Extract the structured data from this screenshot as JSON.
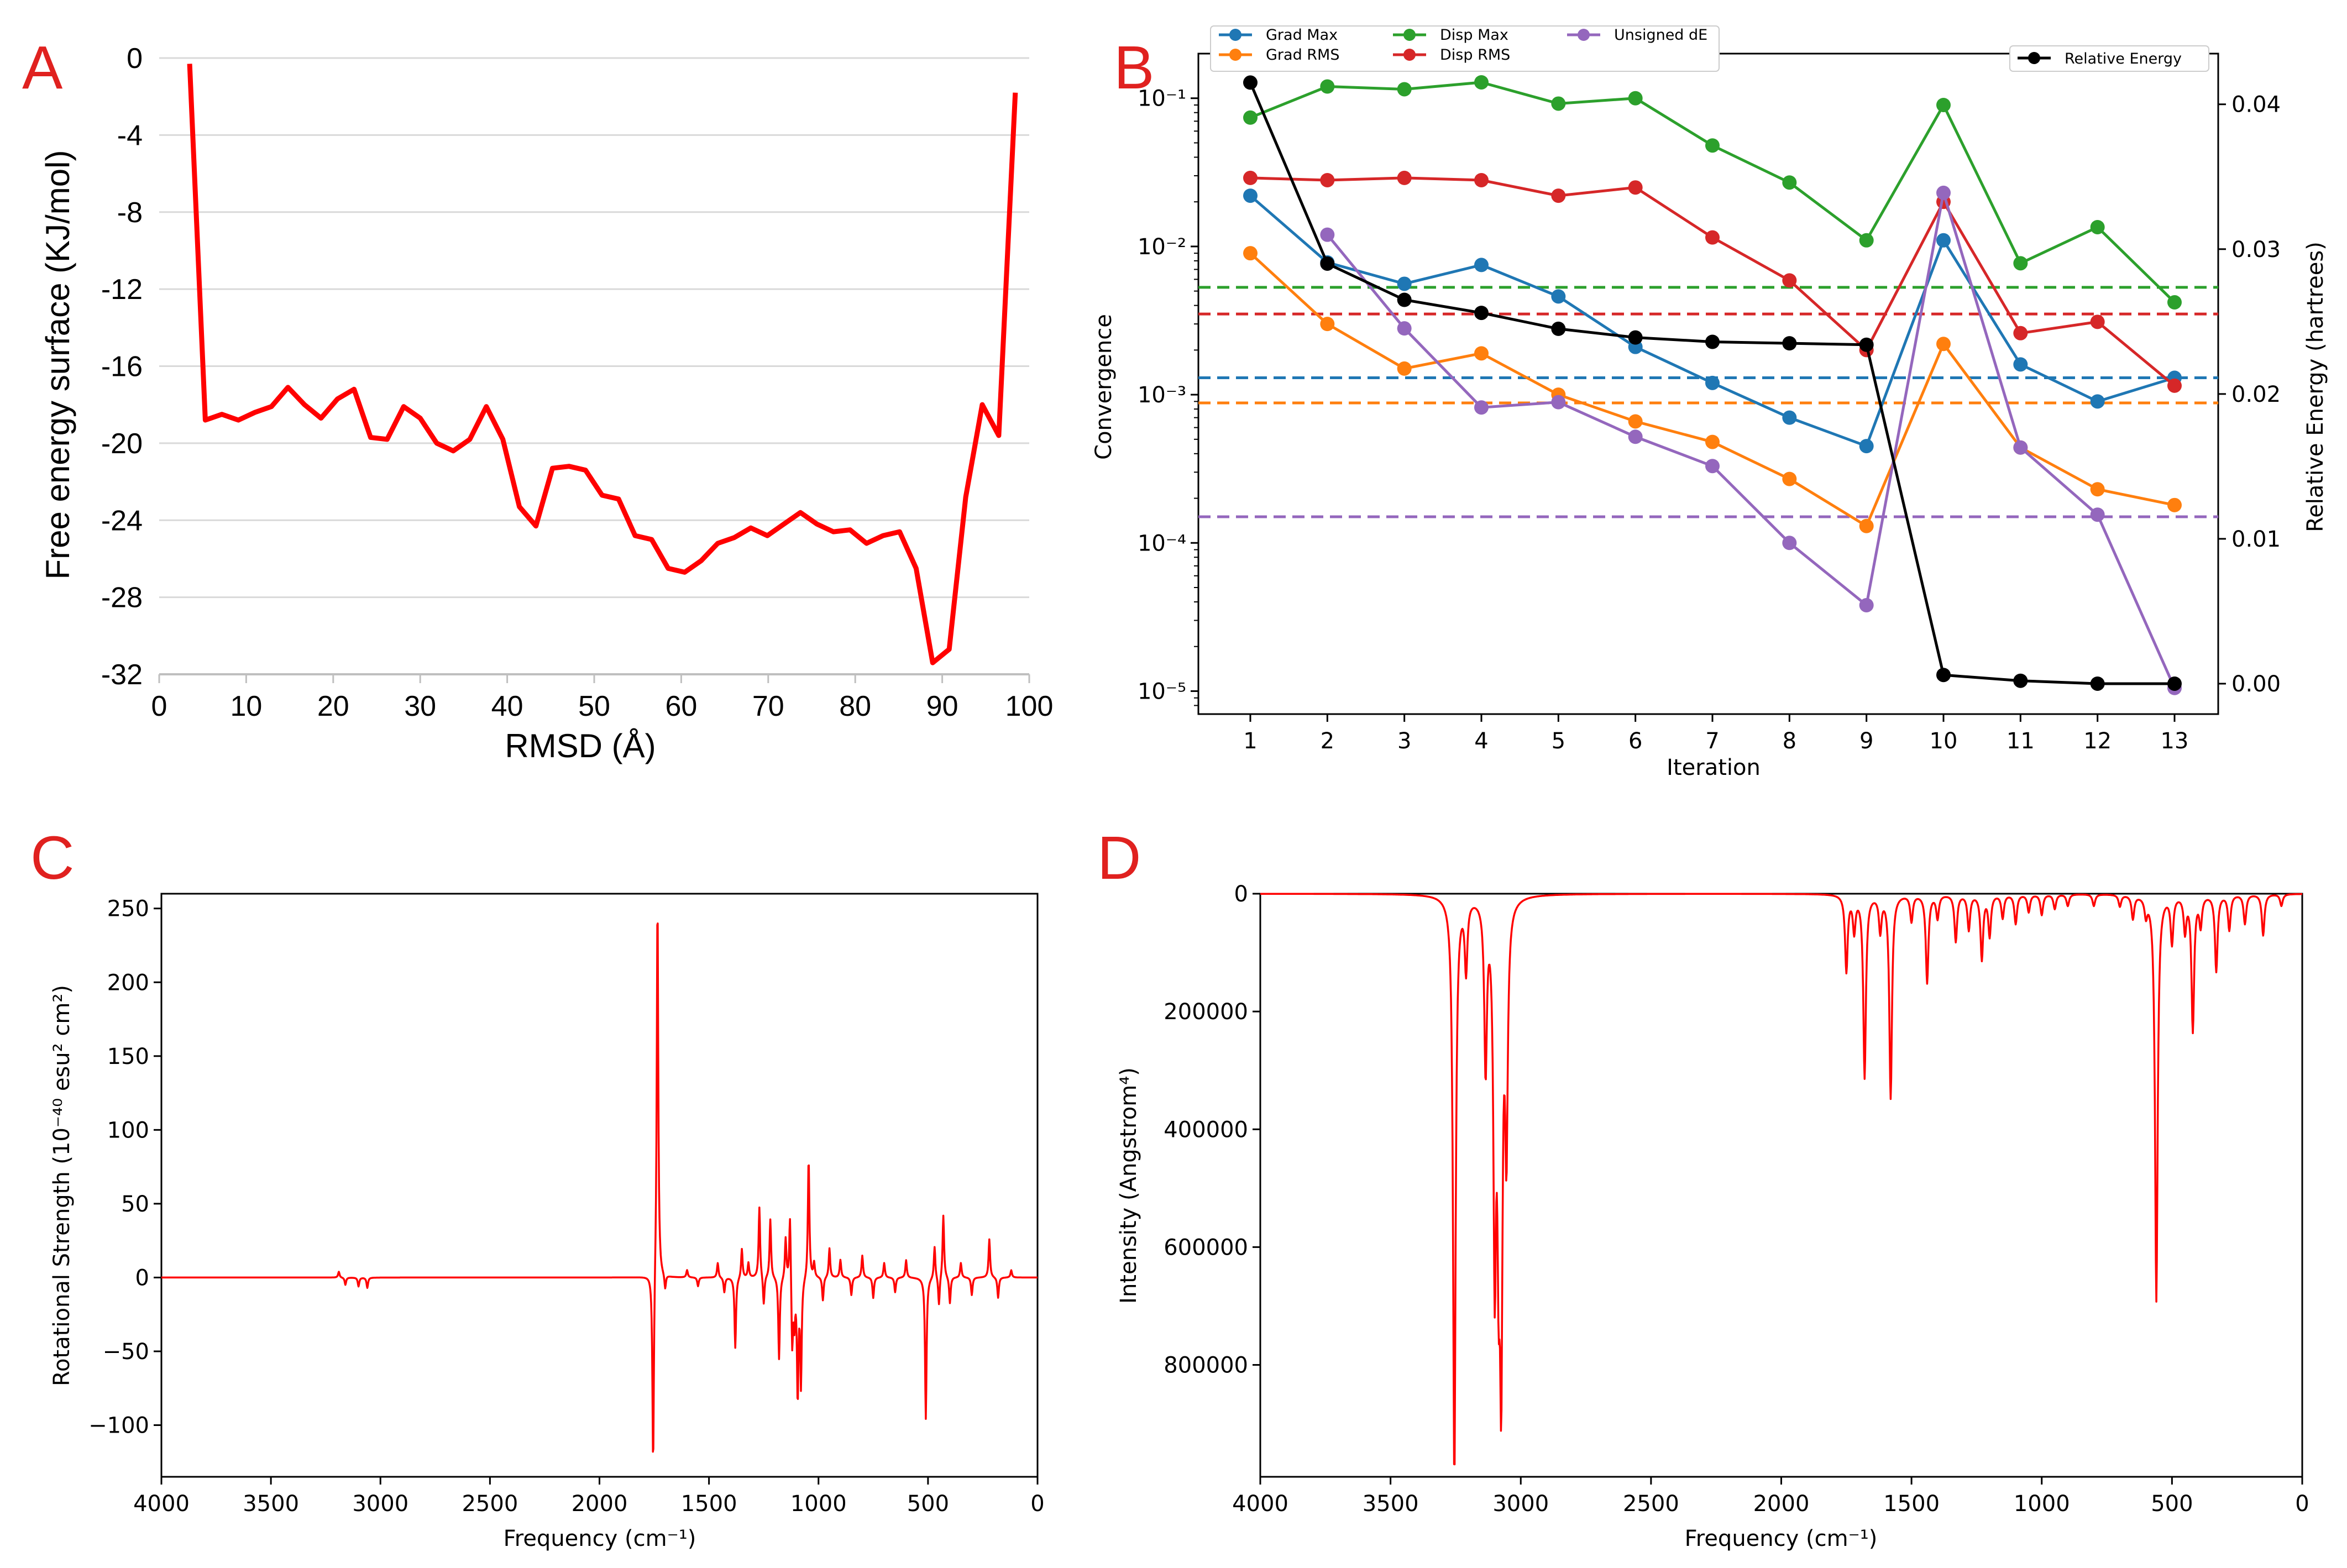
{
  "panels": [
    {
      "id": "A",
      "label": "A"
    },
    {
      "id": "B",
      "label": "B"
    },
    {
      "id": "C",
      "label": "C"
    },
    {
      "id": "D",
      "label": "D"
    }
  ],
  "chart_data": [
    {
      "panel": "A",
      "type": "line",
      "title": "",
      "xlabel": "RMSD (Å)",
      "ylabel": "Free energy surface (KJ/mol)",
      "xlim": [
        0,
        100
      ],
      "ylim": [
        -32,
        0
      ],
      "xticks": [
        0,
        10,
        20,
        30,
        40,
        50,
        60,
        70,
        80,
        90,
        100
      ],
      "yticks": [
        0,
        -4,
        -8,
        -12,
        -16,
        -20,
        -24,
        -28,
        -32
      ],
      "grid": "horizontal",
      "color": "#ff0000",
      "x": [
        3.5,
        5.3,
        7.2,
        9.1,
        11,
        12.9,
        14.8,
        16.7,
        18.6,
        20.5,
        22.4,
        24.3,
        26.2,
        28.1,
        30,
        31.9,
        33.8,
        35.7,
        37.6,
        39.5,
        41.4,
        43.3,
        45.2,
        47.1,
        49,
        50.9,
        52.8,
        54.7,
        56.6,
        58.5,
        60.4,
        62.3,
        64.2,
        66.1,
        68,
        69.9,
        71.8,
        73.7,
        75.6,
        77.5,
        79.4,
        81.3,
        83.2,
        85.1,
        87,
        88.9,
        90.8,
        92.7,
        94.6,
        96.5,
        98.4
      ],
      "y": [
        -0.3,
        -18.8,
        -18.5,
        -18.8,
        -18.4,
        -18.1,
        -17.1,
        -18.0,
        -18.7,
        -17.7,
        -17.2,
        -19.7,
        -19.8,
        -18.1,
        -18.7,
        -20.0,
        -20.4,
        -19.8,
        -18.1,
        -19.8,
        -23.3,
        -24.3,
        -21.3,
        -21.2,
        -21.4,
        -22.7,
        -22.9,
        -24.8,
        -25.0,
        -26.5,
        -26.7,
        -26.1,
        -25.2,
        -24.9,
        -24.4,
        -24.8,
        -24.2,
        -23.6,
        -24.2,
        -24.6,
        -24.5,
        -25.2,
        -24.8,
        -24.6,
        -26.5,
        -31.4,
        -30.7,
        -22.8,
        -18.0,
        -19.6,
        -1.8
      ]
    },
    {
      "panel": "B",
      "type": "line",
      "title": "",
      "xlabel": "Iteration",
      "ylabel": "Convergence",
      "y2label": "Relative Energy (hartrees)",
      "xticks": [
        1,
        2,
        3,
        4,
        5,
        6,
        7,
        8,
        9,
        10,
        11,
        12,
        13
      ],
      "yscale": "log",
      "ylim": [
        7e-06,
        0.2
      ],
      "yticks_labels": [
        "10⁻¹",
        "10⁻²",
        "10⁻³",
        "10⁻⁴",
        "10⁻⁵"
      ],
      "yticks_values": [
        0.1,
        0.01,
        0.001,
        0.0001,
        1e-05
      ],
      "y2lim": [
        -0.0021,
        0.0435
      ],
      "y2ticks": [
        "0.00",
        "0.01",
        "0.02",
        "0.03",
        "0.04"
      ],
      "legend": "top-left and top-right",
      "series": [
        {
          "name": "Grad Max",
          "color": "#1f77b4",
          "threshold": 0.0013,
          "values": [
            0.022,
            0.0078,
            0.0056,
            0.0075,
            0.0046,
            0.0021,
            0.0012,
            0.0007,
            0.00045,
            0.011,
            0.0016,
            0.0009,
            0.0013
          ]
        },
        {
          "name": "Grad RMS",
          "color": "#ff7f0e",
          "threshold": 0.00088,
          "values": [
            0.009,
            0.003,
            0.0015,
            0.0019,
            0.001,
            0.00066,
            0.00048,
            0.00027,
            0.00013,
            0.0022,
            0.00044,
            0.00023,
            0.00018
          ]
        },
        {
          "name": "Disp Max",
          "color": "#2ca02c",
          "threshold": 0.0053,
          "values": [
            0.074,
            0.12,
            0.115,
            0.128,
            0.092,
            0.1,
            0.048,
            0.027,
            0.011,
            0.09,
            0.0077,
            0.0135,
            0.0042
          ]
        },
        {
          "name": "Disp RMS",
          "color": "#d62728",
          "threshold": 0.0035,
          "values": [
            0.029,
            0.028,
            0.029,
            0.028,
            0.022,
            0.025,
            0.0115,
            0.0059,
            0.002,
            0.02,
            0.0026,
            0.0031,
            0.00115
          ]
        },
        {
          "name": "Unsigned dE",
          "color": "#9467bd",
          "threshold": 0.00015,
          "values": [
            null,
            0.012,
            0.0028,
            0.00082,
            0.00089,
            0.00052,
            0.00033,
            0.0001,
            3.8e-05,
            0.023,
            0.00044,
            0.000155,
            1.05e-05
          ]
        },
        {
          "name": "Relative Energy",
          "color": "#000000",
          "axis": "right",
          "values": [
            0.0415,
            0.029,
            0.0265,
            0.0256,
            0.0245,
            0.0239,
            0.0236,
            0.0235,
            0.0234,
            0.0006,
            0.0002,
            0.0,
            0.0
          ]
        }
      ]
    },
    {
      "panel": "C",
      "type": "line",
      "title": "",
      "xlabel": "Frequency (cm⁻¹)",
      "ylabel": "Rotational Strength (10⁻⁴⁰ esu² cm²)",
      "xlim": [
        4000,
        0
      ],
      "ylim": [
        -135,
        260
      ],
      "xticks": [
        4000,
        3500,
        3000,
        2500,
        2000,
        1500,
        1000,
        500,
        0
      ],
      "yticks": [
        -100,
        -50,
        0,
        50,
        100,
        150,
        200,
        250
      ],
      "color": "#ff0000",
      "peaks": [
        {
          "x": 3190,
          "y": 4
        },
        {
          "x": 3160,
          "y": -5
        },
        {
          "x": 3100,
          "y": -6
        },
        {
          "x": 3060,
          "y": -7
        },
        {
          "x": 1755,
          "y": -135
        },
        {
          "x": 1735,
          "y": 260
        },
        {
          "x": 1700,
          "y": -10
        },
        {
          "x": 1600,
          "y": 5
        },
        {
          "x": 1550,
          "y": -6
        },
        {
          "x": 1460,
          "y": 10
        },
        {
          "x": 1430,
          "y": -10
        },
        {
          "x": 1380,
          "y": -48
        },
        {
          "x": 1350,
          "y": 20
        },
        {
          "x": 1320,
          "y": 10
        },
        {
          "x": 1270,
          "y": 48
        },
        {
          "x": 1250,
          "y": -20
        },
        {
          "x": 1220,
          "y": 40
        },
        {
          "x": 1180,
          "y": -56
        },
        {
          "x": 1150,
          "y": 28
        },
        {
          "x": 1130,
          "y": 48
        },
        {
          "x": 1120,
          "y": -50
        },
        {
          "x": 1110,
          "y": -28
        },
        {
          "x": 1095,
          "y": -80
        },
        {
          "x": 1080,
          "y": -72
        },
        {
          "x": 1045,
          "y": 82
        },
        {
          "x": 1020,
          "y": 10
        },
        {
          "x": 980,
          "y": -16
        },
        {
          "x": 950,
          "y": 20
        },
        {
          "x": 900,
          "y": 12
        },
        {
          "x": 850,
          "y": -12
        },
        {
          "x": 800,
          "y": 15
        },
        {
          "x": 750,
          "y": -14
        },
        {
          "x": 700,
          "y": 10
        },
        {
          "x": 650,
          "y": -10
        },
        {
          "x": 600,
          "y": 12
        },
        {
          "x": 510,
          "y": -96
        },
        {
          "x": 470,
          "y": 22
        },
        {
          "x": 450,
          "y": -20
        },
        {
          "x": 430,
          "y": 43
        },
        {
          "x": 400,
          "y": -18
        },
        {
          "x": 350,
          "y": 10
        },
        {
          "x": 300,
          "y": -12
        },
        {
          "x": 220,
          "y": 26
        },
        {
          "x": 180,
          "y": -14
        },
        {
          "x": 120,
          "y": 5
        }
      ]
    },
    {
      "panel": "D",
      "type": "line",
      "title": "",
      "xlabel": "Frequency (cm⁻¹)",
      "ylabel": "Intensity (Angstrom⁴)",
      "xlim": [
        4000,
        0
      ],
      "ylim": [
        0,
        990000
      ],
      "y_inverted": true,
      "xticks": [
        4000,
        3500,
        3000,
        2500,
        2000,
        1500,
        1000,
        500,
        0
      ],
      "yticks": [
        0,
        200000,
        400000,
        600000,
        800000
      ],
      "color": "#ff0000",
      "peaks": [
        {
          "x": 3255,
          "y": 990000
        },
        {
          "x": 3210,
          "y": 120000
        },
        {
          "x": 3135,
          "y": 285000
        },
        {
          "x": 3100,
          "y": 600000
        },
        {
          "x": 3085,
          "y": 460000
        },
        {
          "x": 3075,
          "y": 720000
        },
        {
          "x": 3055,
          "y": 400000
        },
        {
          "x": 1750,
          "y": 130000
        },
        {
          "x": 1720,
          "y": 60000
        },
        {
          "x": 1680,
          "y": 310000
        },
        {
          "x": 1620,
          "y": 60000
        },
        {
          "x": 1580,
          "y": 345000
        },
        {
          "x": 1500,
          "y": 45000
        },
        {
          "x": 1440,
          "y": 150000
        },
        {
          "x": 1400,
          "y": 40000
        },
        {
          "x": 1330,
          "y": 80000
        },
        {
          "x": 1280,
          "y": 60000
        },
        {
          "x": 1230,
          "y": 110000
        },
        {
          "x": 1200,
          "y": 70000
        },
        {
          "x": 1150,
          "y": 40000
        },
        {
          "x": 1100,
          "y": 50000
        },
        {
          "x": 1050,
          "y": 30000
        },
        {
          "x": 1000,
          "y": 35000
        },
        {
          "x": 950,
          "y": 25000
        },
        {
          "x": 900,
          "y": 20000
        },
        {
          "x": 800,
          "y": 20000
        },
        {
          "x": 700,
          "y": 20000
        },
        {
          "x": 650,
          "y": 40000
        },
        {
          "x": 600,
          "y": 30000
        },
        {
          "x": 560,
          "y": 690000
        },
        {
          "x": 500,
          "y": 80000
        },
        {
          "x": 450,
          "y": 60000
        },
        {
          "x": 420,
          "y": 230000
        },
        {
          "x": 390,
          "y": 50000
        },
        {
          "x": 330,
          "y": 130000
        },
        {
          "x": 280,
          "y": 60000
        },
        {
          "x": 220,
          "y": 50000
        },
        {
          "x": 150,
          "y": 70000
        },
        {
          "x": 80,
          "y": 20000
        }
      ]
    }
  ]
}
